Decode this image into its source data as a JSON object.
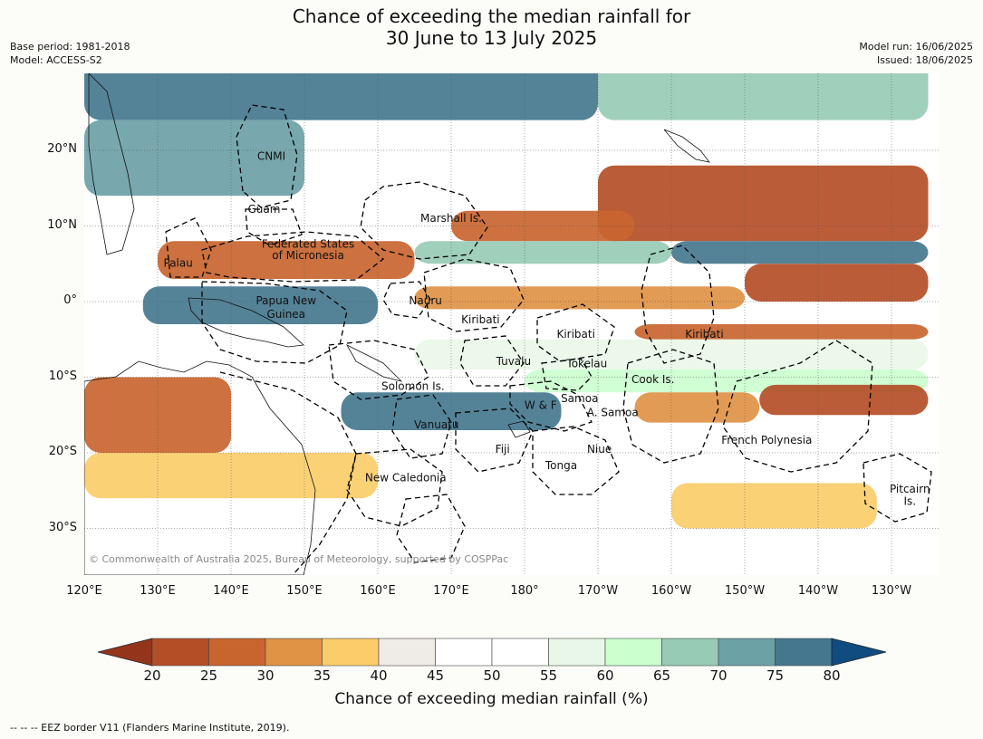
{
  "title_line1": "Chance of exceeding the median rainfall for",
  "title_line2": "30 June to 13 July 2025",
  "meta": {
    "base_period": "Base period: 1981-2018",
    "model": "Model: ACCESS-S2",
    "model_run": "Model run: 16/06/2025",
    "issued": "Issued: 18/06/2025"
  },
  "copyright": "© Commonwealth of Australia 2025, Bureau of Meteorology, supported by COSPPac",
  "lat_ticks": [
    "20°N",
    "10°N",
    "0°",
    "10°S",
    "20°S",
    "30°S"
  ],
  "lon_ticks": [
    "120°E",
    "130°E",
    "140°E",
    "150°E",
    "160°E",
    "170°E",
    "180°",
    "170°W",
    "160°W",
    "150°W",
    "140°W",
    "130°W"
  ],
  "regions": [
    {
      "name": "CNMI",
      "lon": 145.5,
      "lat": 19.2
    },
    {
      "name": "Guam",
      "lon": 144.5,
      "lat": 12.2
    },
    {
      "name": "Marshall Is.",
      "lon": 170,
      "lat": 11
    },
    {
      "name": "Federated States",
      "lon": 150.5,
      "lat": 7.6
    },
    {
      "name": "of Micronesia",
      "lon": 150.5,
      "lat": 6.1
    },
    {
      "name": "Palau",
      "lon": 132.8,
      "lat": 5.1
    },
    {
      "name": "Papua New",
      "lon": 147.5,
      "lat": 0.1
    },
    {
      "name": "Guinea",
      "lon": 147.5,
      "lat": -1.7
    },
    {
      "name": "Nauru",
      "lon": 166.5,
      "lat": 0.1
    },
    {
      "name": "Kiribati",
      "lon": 174,
      "lat": -2.4
    },
    {
      "name": "Kiribati",
      "lon": -173,
      "lat": -4.3
    },
    {
      "name": "Kiribati",
      "lon": -155.5,
      "lat": -4.3
    },
    {
      "name": "Tuvalu",
      "lon": 178.5,
      "lat": -7.9
    },
    {
      "name": "Tokelau",
      "lon": -171.5,
      "lat": -8.2
    },
    {
      "name": "Cook Is.",
      "lon": -162.5,
      "lat": -10.3
    },
    {
      "name": "Solomon Is.",
      "lon": 164.8,
      "lat": -11.2
    },
    {
      "name": "Samoa",
      "lon": -172.5,
      "lat": -12.8
    },
    {
      "name": "W & F",
      "lon": -177.8,
      "lat": -13.7
    },
    {
      "name": "A. Samoa",
      "lon": -168,
      "lat": -14.7
    },
    {
      "name": "Vanuatu",
      "lon": 168,
      "lat": -16.3
    },
    {
      "name": "Fiji",
      "lon": 177,
      "lat": -19.5
    },
    {
      "name": "Niue",
      "lon": -169.8,
      "lat": -19.5
    },
    {
      "name": "Tonga",
      "lon": -175,
      "lat": -21.7
    },
    {
      "name": "French Polynesia",
      "lon": -147,
      "lat": -18.3
    },
    {
      "name": "New Caledonia",
      "lon": 163.8,
      "lat": -23.3
    },
    {
      "name": "Pitcairn",
      "lon": -127.5,
      "lat": -24.8
    },
    {
      "name": "Is.",
      "lon": -127.5,
      "lat": -26.4
    }
  ],
  "field_bands": [
    {
      "lat0": 32,
      "lat1": 24,
      "lon0": 120,
      "lon1": 190,
      "pct": 78
    },
    {
      "lat0": 24,
      "lat1": 14,
      "lon0": 120,
      "lon1": 150,
      "pct": 72
    },
    {
      "lat0": 32,
      "lat1": 24,
      "lon0": 190,
      "lon1": 235,
      "pct": 65
    },
    {
      "lat0": 22,
      "lat1": 16,
      "lon0": 150,
      "lon1": 200,
      "pct": 50
    },
    {
      "lat0": 18,
      "lat1": 8,
      "lon0": 190,
      "lon1": 235,
      "pct": 22
    },
    {
      "lat0": 12,
      "lat1": 8,
      "lon0": 170,
      "lon1": 195,
      "pct": 28
    },
    {
      "lat0": 8,
      "lat1": 3,
      "lon0": 130,
      "lon1": 165,
      "pct": 25
    },
    {
      "lat0": 8,
      "lat1": 5,
      "lon0": 165,
      "lon1": 200,
      "pct": 65
    },
    {
      "lat0": 8,
      "lat1": 5,
      "lon0": 200,
      "lon1": 235,
      "pct": 78
    },
    {
      "lat0": 5,
      "lat1": 0,
      "lon0": 210,
      "lon1": 235,
      "pct": 22
    },
    {
      "lat0": 2,
      "lat1": -1,
      "lon0": 165,
      "lon1": 210,
      "pct": 30
    },
    {
      "lat0": 2,
      "lat1": -3,
      "lon0": 128,
      "lon1": 160,
      "pct": 78
    },
    {
      "lat0": -3,
      "lat1": -5,
      "lon0": 195,
      "lon1": 235,
      "pct": 25
    },
    {
      "lat0": -5,
      "lat1": -9,
      "lon0": 165,
      "lon1": 235,
      "pct": 55
    },
    {
      "lat0": -9,
      "lat1": -12,
      "lon0": 180,
      "lon1": 235,
      "pct": 62
    },
    {
      "lat0": -11,
      "lat1": -15,
      "lon0": 212,
      "lon1": 235,
      "pct": 22
    },
    {
      "lat0": -12,
      "lat1": -16,
      "lon0": 195,
      "lon1": 212,
      "pct": 32
    },
    {
      "lat0": -10,
      "lat1": -20,
      "lon0": 120,
      "lon1": 140,
      "pct": 27
    },
    {
      "lat0": -12,
      "lat1": -17,
      "lon0": 155,
      "lon1": 185,
      "pct": 75
    },
    {
      "lat0": -20,
      "lat1": -26,
      "lon0": 120,
      "lon1": 160,
      "pct": 36
    },
    {
      "lat0": -24,
      "lat1": -30,
      "lon0": 200,
      "lon1": 228,
      "pct": 35
    },
    {
      "lat0": -30,
      "lat1": -35,
      "lon0": 120,
      "lon1": 235,
      "pct": 48
    }
  ],
  "cbar_ticks": [
    "20",
    "25",
    "30",
    "35",
    "40",
    "45",
    "50",
    "55",
    "60",
    "65",
    "70",
    "75",
    "80"
  ],
  "cbar_colors": [
    "#94341b",
    "#b44e27",
    "#c8652f",
    "#e09345",
    "#fbcd6a",
    "#efebe6",
    "#ffffff",
    "#ffffff",
    "#e9f7e8",
    "#cbffce",
    "#98cbb6",
    "#6ca1a6",
    "#45788f",
    "#104c80"
  ],
  "cbar_label": "Chance of exceeding median rainfall (%)",
  "footnote": "-- -- -- EEZ border V11 (Flanders Marine Institute, 2019)."
}
